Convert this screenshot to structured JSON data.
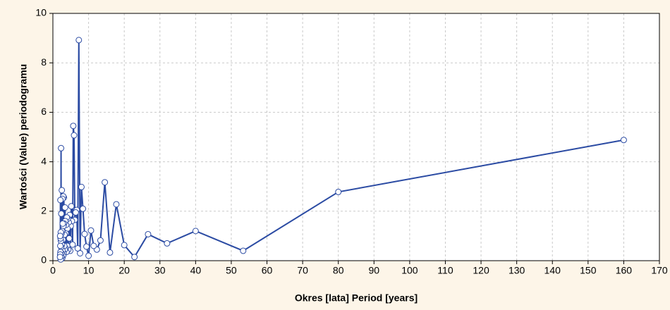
{
  "chart_data": {
    "type": "line",
    "xlabel": "Okres [lata] Period [years]",
    "ylabel": "Wartości (Value) periodogramu",
    "color": "#2b4ba3",
    "grid": true,
    "xlim": [
      0,
      170
    ],
    "xticks": [
      0,
      10,
      20,
      30,
      40,
      50,
      60,
      70,
      80,
      90,
      100,
      110,
      120,
      130,
      140,
      150,
      160,
      170
    ],
    "ylim": [
      0,
      10
    ],
    "yticks": [
      0,
      2,
      4,
      6,
      8,
      10
    ],
    "x": [
      160,
      80,
      53.33,
      40,
      32,
      26.67,
      22.86,
      20,
      17.78,
      16,
      14.55,
      13.33,
      12.31,
      11.43,
      10.67,
      10,
      9.41,
      8.89,
      8.42,
      8,
      7.62,
      7.27,
      6.96,
      6.67,
      6.4,
      6.15,
      5.93,
      5.71,
      5.52,
      5.33,
      5.16,
      5,
      4.85,
      4.71,
      4.57,
      4.44,
      4.32,
      4.21,
      4.1,
      4,
      3.9,
      3.81,
      3.72,
      3.64,
      3.56,
      3.48,
      3.4,
      3.33,
      3.27,
      3.2,
      3.14,
      3.08,
      3.02,
      2.96,
      2.91,
      2.86,
      2.81,
      2.76,
      2.71,
      2.67,
      2.62,
      2.58,
      2.54,
      2.5,
      2.46,
      2.42,
      2.39,
      2.35,
      2.32,
      2.29,
      2.25,
      2.22,
      2.19,
      2.16,
      2.13,
      2.11,
      2.08,
      2.05,
      2.03,
      2
    ],
    "values": [
      4.88,
      2.78,
      0.4,
      1.2,
      0.7,
      1.07,
      0.15,
      0.63,
      2.28,
      0.33,
      3.17,
      0.82,
      0.45,
      0.6,
      1.22,
      0.2,
      0.57,
      1.08,
      2.1,
      2.98,
      0.3,
      8.92,
      0.5,
      2.05,
      1.95,
      1.65,
      5.07,
      5.45,
      0.65,
      1.6,
      2.2,
      1.4,
      0.4,
      1.85,
      0.9,
      1.55,
      0.45,
      1.7,
      1.3,
      0.6,
      1.75,
      0.35,
      1.45,
      1.1,
      0.5,
      1.6,
      2.15,
      0.45,
      1.05,
      0.6,
      1.5,
      2.55,
      0.3,
      1.4,
      2.6,
      0.2,
      0.85,
      1.5,
      0.4,
      2.5,
      0.1,
      1.2,
      0.65,
      2.85,
      0.3,
      1.1,
      0.15,
      1.9,
      0.55,
      4.55,
      0.8,
      1.15,
      0.05,
      0.9,
      0.35,
      2.45,
      0.6,
      0.25,
      1.0,
      0.15
    ]
  }
}
